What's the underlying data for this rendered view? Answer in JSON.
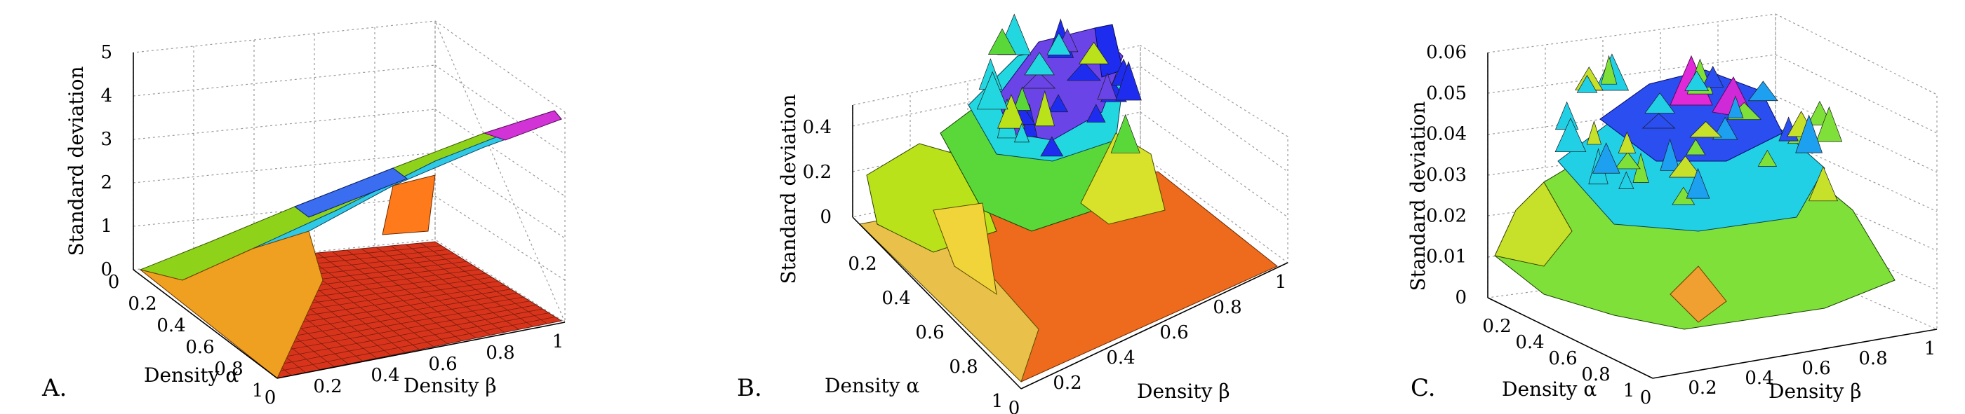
{
  "chart_data": [
    {
      "type": "surface3d",
      "panel_label": "A.",
      "zlabel": "Standard deviation",
      "xlabel": "Density β",
      "ylabel": "Density α",
      "x_ticks": [
        "0",
        "0.2",
        "0.4",
        "0.6",
        "0.8",
        "1"
      ],
      "y_ticks": [
        "0",
        "0.2",
        "0.4",
        "0.6",
        "0.8",
        "1"
      ],
      "z_ticks": [
        "0",
        "1",
        "2",
        "3",
        "4",
        "5"
      ],
      "xlim": [
        0,
        1
      ],
      "ylim": [
        0,
        1
      ],
      "zlim": [
        0,
        5
      ],
      "surface_profile": "ridge along diagonal alpha = beta rising from ~0 to ~4.4; near-zero flat plateau elsewhere",
      "ridge": {
        "x": [
          0,
          0.2,
          0.4,
          0.6,
          0.8,
          1
        ],
        "z": [
          0.1,
          0.8,
          1.6,
          2.4,
          3.3,
          4.4
        ]
      }
    },
    {
      "type": "surface3d",
      "panel_label": "B.",
      "zlabel": "Standard deviation",
      "xlabel": "Density β",
      "ylabel": "Density α",
      "x_ticks": [
        "0",
        "0.2",
        "0.4",
        "0.6",
        "0.8",
        "1"
      ],
      "y_ticks": [
        "0.2",
        "0.4",
        "0.6",
        "0.8",
        "1"
      ],
      "z_ticks": [
        "0",
        "0.2",
        "0.4"
      ],
      "xlim": [
        0,
        1
      ],
      "ylim": [
        0,
        1
      ],
      "zlim": [
        0,
        0.5
      ],
      "surface_profile": "noisy central peak near alpha = beta = 0.5 reaching ~0.5",
      "peak": {
        "x": 0.5,
        "y": 0.5,
        "z": 0.5
      }
    },
    {
      "type": "surface3d",
      "panel_label": "C.",
      "zlabel": "Standard deviation",
      "xlabel": "Density β",
      "ylabel": "Density α",
      "x_ticks": [
        "0",
        "0.2",
        "0.4",
        "0.6",
        "0.8",
        "1"
      ],
      "y_ticks": [
        "0.2",
        "0.4",
        "0.6",
        "0.8",
        "1"
      ],
      "z_ticks": [
        "0",
        "0.01",
        "0.02",
        "0.03",
        "0.04",
        "0.05",
        "0.06"
      ],
      "xlim": [
        0,
        1
      ],
      "ylim": [
        0,
        1
      ],
      "zlim": [
        0,
        0.06
      ],
      "surface_profile": "noisy dome peaked near alpha = beta = 0.5 at ~0.06",
      "peak": {
        "x": 0.5,
        "y": 0.5,
        "z": 0.06
      }
    }
  ]
}
